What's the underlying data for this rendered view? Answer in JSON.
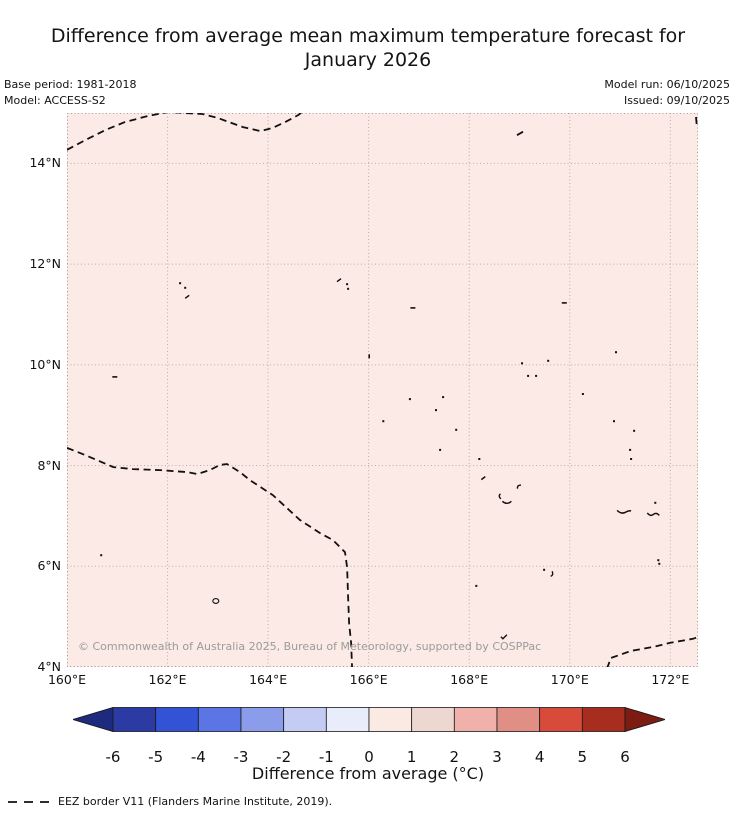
{
  "title": {
    "line1": "Difference from average mean maximum temperature forecast for",
    "line2": "January 2026"
  },
  "meta": {
    "base_period": "Base period: 1981-2018",
    "model": "Model: ACCESS-S2",
    "model_run": "Model run: 06/10/2025",
    "issued": "Issued: 09/10/2025"
  },
  "map": {
    "extent": {
      "lon_min": 160,
      "lon_max": 172.55,
      "lat_min": 4,
      "lat_max": 15
    },
    "background_color": "#fceae6",
    "gridline_color": "#b9aeac",
    "border_color": "#a9a09e",
    "coastline_color": "#111111",
    "eez_color": "#111111",
    "copyright": "© Commonwealth of Australia 2025, Bureau of Meteorology, supported by COSPPac",
    "x_ticks": [
      {
        "lon": 160,
        "label": "160°E"
      },
      {
        "lon": 162,
        "label": "162°E"
      },
      {
        "lon": 164,
        "label": "164°E"
      },
      {
        "lon": 166,
        "label": "166°E"
      },
      {
        "lon": 168,
        "label": "168°E"
      },
      {
        "lon": 170,
        "label": "170°E"
      },
      {
        "lon": 172,
        "label": "172°E"
      }
    ],
    "y_ticks": [
      {
        "lat": 14,
        "label": "14°N"
      },
      {
        "lat": 12,
        "label": "12°N"
      },
      {
        "lat": 10,
        "label": "10°N"
      },
      {
        "lat": 8,
        "label": "8°N"
      },
      {
        "lat": 6,
        "label": "6°N"
      },
      {
        "lat": 4,
        "label": "4°N"
      }
    ],
    "eez_lines": [
      {
        "name": "eez-north",
        "points": [
          [
            160,
            14.27
          ],
          [
            160.36,
            14.46
          ],
          [
            160.76,
            14.66
          ],
          [
            161.15,
            14.82
          ],
          [
            161.61,
            14.94
          ],
          [
            162.01,
            15.02
          ],
          [
            162.69,
            14.98
          ],
          [
            163.0,
            14.9
          ],
          [
            163.28,
            14.8
          ],
          [
            163.5,
            14.72
          ],
          [
            163.68,
            14.68
          ],
          [
            163.84,
            14.64
          ],
          [
            164.08,
            14.7
          ],
          [
            164.34,
            14.82
          ],
          [
            164.6,
            14.96
          ],
          [
            164.73,
            15.06
          ]
        ]
      },
      {
        "name": "eez-north-fragment",
        "points": [
          [
            168.95,
            14.56
          ],
          [
            169.09,
            14.64
          ]
        ]
      },
      {
        "name": "eez-northeast-fragment",
        "points": [
          [
            172.51,
            14.92
          ],
          [
            172.53,
            14.7
          ]
        ]
      },
      {
        "name": "eez-west",
        "points": [
          [
            160,
            8.35
          ],
          [
            160.36,
            8.21
          ],
          [
            160.92,
            7.97
          ],
          [
            161.31,
            7.93
          ],
          [
            161.85,
            7.91
          ],
          [
            162.39,
            7.87
          ],
          [
            162.59,
            7.83
          ],
          [
            162.84,
            7.91
          ],
          [
            163.04,
            8.01
          ],
          [
            163.18,
            8.03
          ],
          [
            163.44,
            7.87
          ],
          [
            163.64,
            7.71
          ],
          [
            164.1,
            7.41
          ],
          [
            164.63,
            6.92
          ],
          [
            165.03,
            6.66
          ],
          [
            165.29,
            6.52
          ],
          [
            165.53,
            6.28
          ],
          [
            165.57,
            5.98
          ],
          [
            165.59,
            5.39
          ],
          [
            165.61,
            4.87
          ],
          [
            165.65,
            4.48
          ],
          [
            165.67,
            3.98
          ]
        ]
      },
      {
        "name": "eez-southeast",
        "points": [
          [
            170.74,
            3.97
          ],
          [
            170.82,
            4.18
          ],
          [
            171.22,
            4.32
          ],
          [
            171.66,
            4.4
          ],
          [
            172.0,
            4.48
          ],
          [
            172.45,
            4.56
          ],
          [
            172.56,
            4.6
          ]
        ]
      }
    ],
    "islands": [
      {
        "lon": 160.95,
        "lat": 9.76,
        "kind": "dash"
      },
      {
        "lon": 162.25,
        "lat": 11.62,
        "kind": "dot"
      },
      {
        "lon": 162.35,
        "lat": 11.53,
        "kind": "dot"
      },
      {
        "lon": 162.39,
        "lat": 11.35,
        "kind": "dashs"
      },
      {
        "lon": 160.68,
        "lat": 6.22,
        "kind": "dot"
      },
      {
        "lon": 162.96,
        "lat": 5.31,
        "kind": "ring"
      },
      {
        "lon": 165.41,
        "lat": 11.68,
        "kind": "dashs"
      },
      {
        "lon": 165.57,
        "lat": 11.6,
        "kind": "dot"
      },
      {
        "lon": 165.59,
        "lat": 11.51,
        "kind": "dot"
      },
      {
        "lon": 166.88,
        "lat": 11.13,
        "kind": "dash"
      },
      {
        "lon": 166.01,
        "lat": 10.17,
        "kind": "dashv"
      },
      {
        "lon": 169.89,
        "lat": 11.23,
        "kind": "dash"
      },
      {
        "lon": 170.92,
        "lat": 10.25,
        "kind": "dot"
      },
      {
        "lon": 169.05,
        "lat": 10.03,
        "kind": "dot"
      },
      {
        "lon": 169.57,
        "lat": 10.08,
        "kind": "dot"
      },
      {
        "lon": 169.17,
        "lat": 9.78,
        "kind": "dot"
      },
      {
        "lon": 169.33,
        "lat": 9.78,
        "kind": "dot"
      },
      {
        "lon": 170.26,
        "lat": 9.42,
        "kind": "dot"
      },
      {
        "lon": 167.48,
        "lat": 9.36,
        "kind": "dot"
      },
      {
        "lon": 166.82,
        "lat": 9.32,
        "kind": "dot"
      },
      {
        "lon": 167.34,
        "lat": 9.1,
        "kind": "dot"
      },
      {
        "lon": 166.29,
        "lat": 8.88,
        "kind": "dot"
      },
      {
        "lon": 167.74,
        "lat": 8.71,
        "kind": "dot"
      },
      {
        "lon": 170.88,
        "lat": 8.88,
        "kind": "dot"
      },
      {
        "lon": 171.28,
        "lat": 8.69,
        "kind": "dot"
      },
      {
        "lon": 167.42,
        "lat": 8.31,
        "kind": "dot"
      },
      {
        "lon": 171.2,
        "lat": 8.31,
        "kind": "dot"
      },
      {
        "lon": 171.22,
        "lat": 8.13,
        "kind": "dot"
      },
      {
        "lon": 168.2,
        "lat": 8.13,
        "kind": "dot"
      },
      {
        "lon": 168.28,
        "lat": 7.75,
        "kind": "dashs"
      },
      {
        "lon": 168.97,
        "lat": 7.57,
        "kind": "hook"
      },
      {
        "lon": 168.59,
        "lat": 7.39,
        "kind": "arc"
      },
      {
        "lon": 168.75,
        "lat": 7.27,
        "kind": "arcu"
      },
      {
        "lon": 171.08,
        "lat": 7.12,
        "kind": "arcuw"
      },
      {
        "lon": 171.66,
        "lat": 7.06,
        "kind": "arcs"
      },
      {
        "lon": 171.7,
        "lat": 7.26,
        "kind": "dot"
      },
      {
        "lon": 171.76,
        "lat": 6.12,
        "kind": "dot"
      },
      {
        "lon": 171.78,
        "lat": 6.05,
        "kind": "dot"
      },
      {
        "lon": 169.49,
        "lat": 5.93,
        "kind": "dot"
      },
      {
        "lon": 169.63,
        "lat": 5.85,
        "kind": "jshape"
      },
      {
        "lon": 168.14,
        "lat": 5.61,
        "kind": "dot"
      },
      {
        "lon": 168.69,
        "lat": 4.61,
        "kind": "check"
      }
    ]
  },
  "colorbar": {
    "label": "Difference from average (°C)",
    "ticks": [
      "-6",
      "-5",
      "-4",
      "-3",
      "-2",
      "-1",
      "0",
      "1",
      "2",
      "3",
      "4",
      "5",
      "6"
    ],
    "segment_colors": [
      "#2c3ba3",
      "#3353d6",
      "#5b76e4",
      "#8b9ceb",
      "#c4ccf4",
      "#e8ecfb",
      "#fbe9e3",
      "#ecd7d1",
      "#f0b1ab",
      "#e18e85",
      "#d84b3a",
      "#a72d1f"
    ],
    "under_color": "#1e2a7e",
    "over_color": "#7c1c13",
    "outline_color": "#1a1a1a"
  },
  "eez_legend": {
    "text": "EEZ border V11 (Flanders Marine Institute, 2019)."
  },
  "chart_data": {
    "type": "heatmap",
    "title": "Difference from average mean maximum temperature forecast for January 2026",
    "extent": {
      "lon_range": [
        160,
        172.55
      ],
      "lat_range": [
        4,
        15
      ]
    },
    "colorbar": {
      "label": "Difference from average (°C)",
      "ticks": [
        -6,
        -5,
        -4,
        -3,
        -2,
        -1,
        0,
        1,
        2,
        3,
        4,
        5,
        6
      ],
      "range": [
        -6,
        6
      ],
      "extend": "both"
    },
    "field_summary": "Entire visible ocean domain falls in the 0 to +1 °C anomaly class (uniform pale pink shading)"
  }
}
